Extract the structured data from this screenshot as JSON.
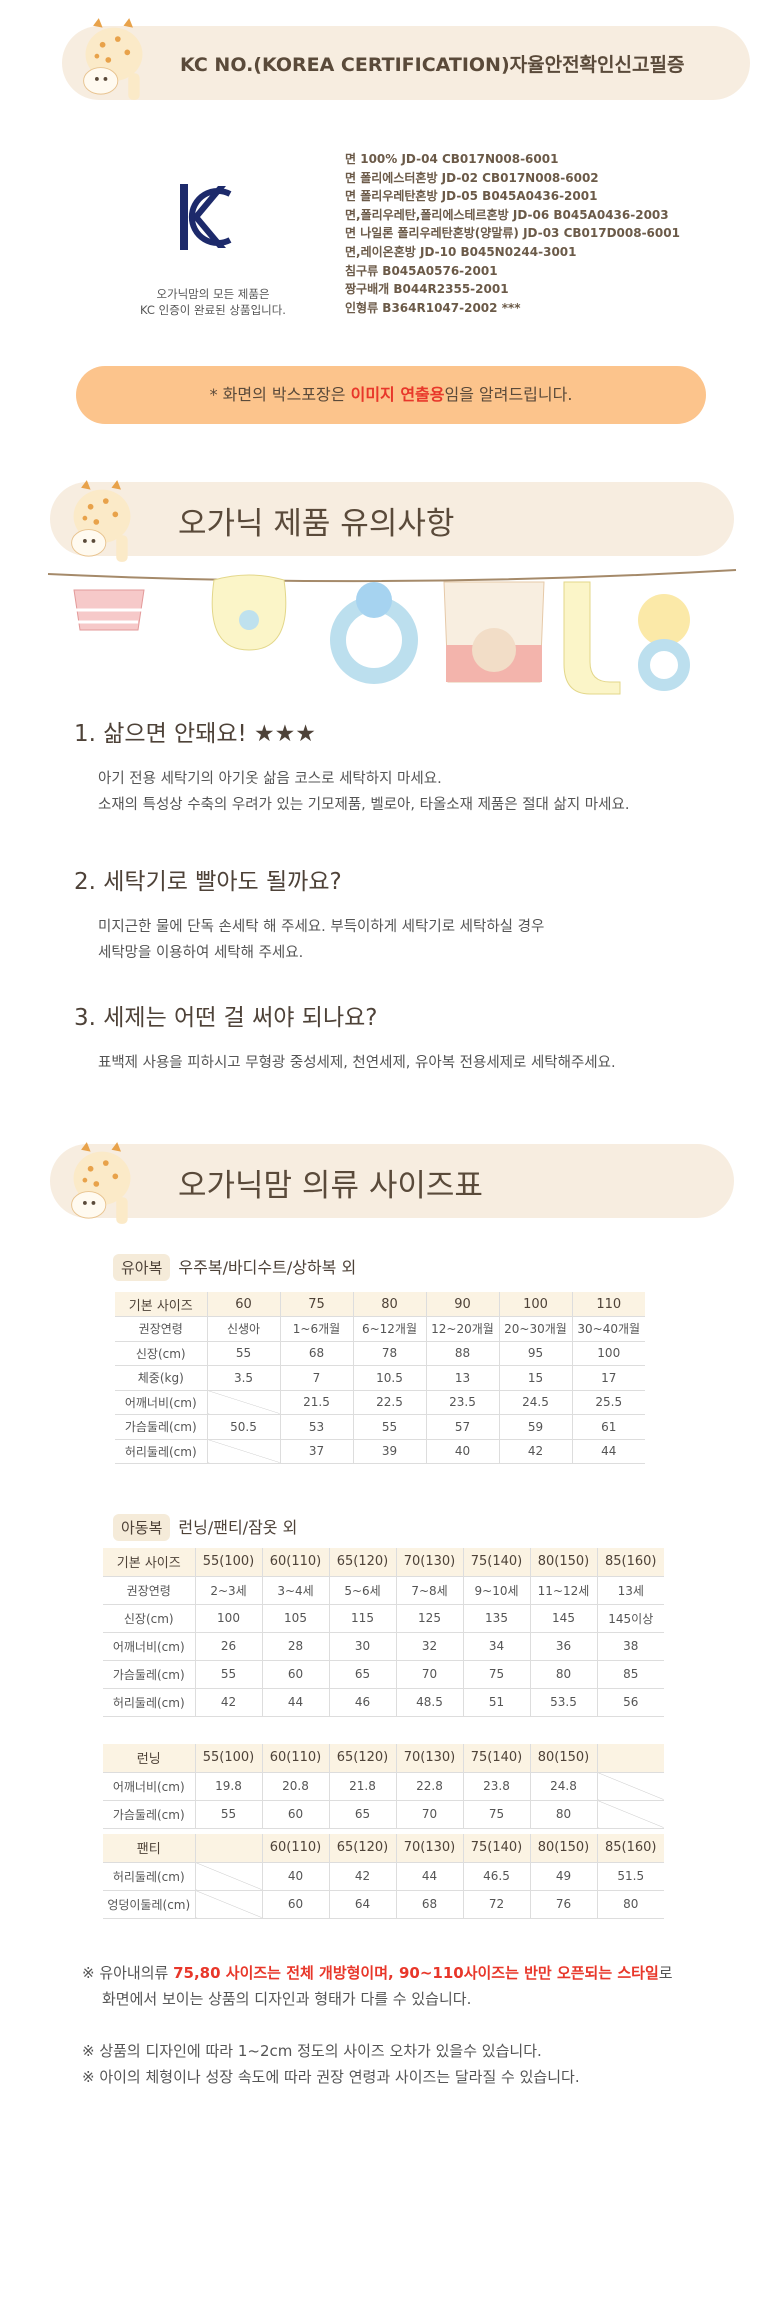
{
  "kc_banner": {
    "title": "KC NO.(KOREA CERTIFICATION)자율안전확인신고필증"
  },
  "kc_caption": [
    "오가닉맘의 모든 제품은",
    "KC 인증이 완료된 상품입니다."
  ],
  "certifications": [
    "면 100% JD-04  CB017N008-6001",
    "면 폴리에스터혼방 JD-02  CB017N008-6002",
    "면 폴리우레탄혼방 JD-05  B045A0436-2001",
    "면,폴리우레탄,폴리에스테르혼방 JD-06  B045A0436-2003",
    "면 나일론 폴리우레탄혼방(양말류) JD-03  CB017D008-6001",
    "면,레이온혼방 JD-10  B045N0244-3001",
    "침구류 B045A0576-2001",
    "짱구배개  B044R2355-2001",
    "인형류 B364R1047-2002 ***"
  ],
  "notice": {
    "before": "* 화면의 박스포장은 ",
    "highlight": "이미지 연출용",
    "after": "임을 알려드립니다."
  },
  "care": {
    "title": "오가닉 제품 유의사항",
    "items": [
      {
        "question": "1. 삶으면 안돼요! ★★★",
        "lines": [
          "아기 전용 세탁기의 아기옷 삶음 코스로 세탁하지 마세요.",
          "소재의 특성상 수축의 우려가 있는 기모제품, 벨로아, 타올소재 제품은 절대 삶지 마세요."
        ]
      },
      {
        "question": "2. 세탁기로 빨아도 될까요?",
        "lines": [
          "미지근한 물에 단독 손세탁 해 주세요. 부득이하게 세탁기로 세탁하실 경우",
          "세탁망을 이용하여 세탁해 주세요."
        ]
      },
      {
        "question": "3. 세제는 어떤 걸 써야 되나요?",
        "lines": [
          "표백제 사용을 피하시고 무형광 중성세제, 천연세제, 유아복 전용세제로 세탁해주세요."
        ]
      }
    ]
  },
  "size": {
    "title": "오가닉맘 의류 사이즈표",
    "infant": {
      "tag": "유아복",
      "desc": "우주복/바디수트/상하복 외",
      "rows": [
        [
          "기본 사이즈",
          60,
          75,
          80,
          90,
          100,
          110
        ],
        [
          "권장연령",
          "신생아",
          "1~6개월",
          "6~12개월",
          "12~20개월",
          "20~30개월",
          "30~40개월"
        ],
        [
          "신장(cm)",
          55,
          68,
          78,
          88,
          95,
          100
        ],
        [
          "체중(kg)",
          3.5,
          7,
          10.5,
          13,
          15,
          17
        ],
        [
          "어깨너비(cm)",
          null,
          21.5,
          22.5,
          23.5,
          24.5,
          25.5
        ],
        [
          "가슴둘레(cm)",
          50.5,
          53,
          55,
          57,
          59,
          61
        ],
        [
          "허리둘레(cm)",
          null,
          37,
          39,
          40,
          42,
          44
        ]
      ]
    },
    "kids": {
      "tag": "아동복",
      "desc": "런닝/팬티/잠옷 외",
      "rows": [
        [
          "기본 사이즈",
          "55(100)",
          "60(110)",
          "65(120)",
          "70(130)",
          "75(140)",
          "80(150)",
          "85(160)"
        ],
        [
          "권장연령",
          "2~3세",
          "3~4세",
          "5~6세",
          "7~8세",
          "9~10세",
          "11~12세",
          "13세"
        ],
        [
          "신장(cm)",
          100,
          105,
          115,
          125,
          135,
          145,
          "145이상"
        ],
        [
          "어깨너비(cm)",
          26,
          28,
          30,
          32,
          34,
          36,
          38
        ],
        [
          "가슴둘레(cm)",
          55,
          60,
          65,
          70,
          75,
          80,
          85
        ],
        [
          "허리둘레(cm)",
          42,
          44,
          46,
          48.5,
          51,
          53.5,
          56
        ]
      ]
    },
    "running": {
      "rows": [
        [
          "런닝",
          "55(100)",
          "60(110)",
          "65(120)",
          "70(130)",
          "75(140)",
          "80(150)",
          null
        ],
        [
          "어깨너비(cm)",
          19.8,
          20.8,
          21.8,
          22.8,
          23.8,
          24.8,
          null
        ],
        [
          "가슴둘레(cm)",
          55,
          60,
          65,
          70,
          75,
          80,
          null
        ]
      ]
    },
    "panty": {
      "rows": [
        [
          "팬티",
          null,
          "60(110)",
          "65(120)",
          "70(130)",
          "75(140)",
          "80(150)",
          "85(160)"
        ],
        [
          "허리둘레(cm)",
          null,
          40,
          42,
          44,
          46.5,
          49,
          51.5
        ],
        [
          "엉덩이둘레(cm)",
          null,
          60,
          64,
          68,
          72,
          76,
          80
        ]
      ]
    }
  },
  "notes": {
    "first": {
      "before": "※ 유아내의류 ",
      "highlight": "75,80 사이즈는 전체 개방형이며, 90~110사이즈는 반만 오픈되는 스타일",
      "after": "로",
      "line2": "화면에서 보이는 상품의 디자인과 형태가 다를 수 있습니다."
    },
    "others": [
      "※ 상품의 디자인에 따라 1~2cm 정도의 사이즈 오차가 있을수 있습니다.",
      "※ 아이의 체형이나 성장 속도에 따라 권장 연령과 사이즈는 달라질 수 있습니다."
    ]
  }
}
